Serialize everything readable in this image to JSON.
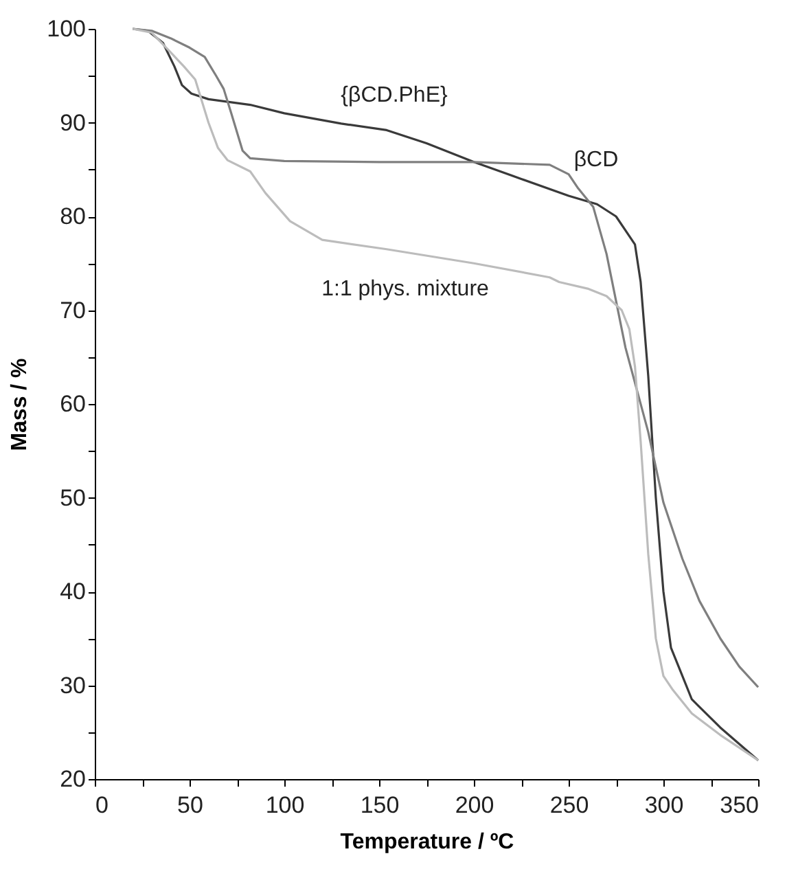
{
  "chart_data": {
    "type": "line",
    "xlabel": "Temperature / ºC",
    "ylabel": "Mass / %",
    "xlim": [
      0,
      350
    ],
    "ylim": [
      20,
      100
    ],
    "xticks": [
      0,
      {
        "value": 25,
        "label": null
      },
      50,
      {
        "value": 75,
        "label": null
      },
      100,
      {
        "value": 125,
        "label": null
      },
      150,
      {
        "value": 175,
        "label": null
      },
      200,
      {
        "value": 225,
        "label": null
      },
      250,
      {
        "value": 275,
        "label": null
      },
      300,
      {
        "value": 325,
        "label": null
      },
      350
    ],
    "yticks": [
      20,
      {
        "value": 25,
        "label": null
      },
      30,
      {
        "value": 35,
        "label": null
      },
      40,
      {
        "value": 45,
        "label": null
      },
      50,
      {
        "value": 55,
        "label": null
      },
      60,
      {
        "value": 65,
        "label": null
      },
      70,
      {
        "value": 75,
        "label": null
      },
      80,
      {
        "value": 85,
        "label": null
      },
      90,
      {
        "value": 95,
        "label": null
      },
      100
    ],
    "grid": false,
    "marker": "none",
    "line_style": "solid",
    "series": [
      {
        "color": "#3a3a3a",
        "x": [
          20,
          28,
          36,
          42,
          46,
          51,
          60,
          82,
          100,
          130,
          154,
          175,
          200,
          225,
          250,
          265,
          275,
          280,
          285,
          288,
          292,
          296,
          300,
          304,
          308,
          315,
          330,
          350
        ],
        "values": [
          100,
          99.8,
          98.5,
          96,
          94,
          93.1,
          92.5,
          91.9,
          91,
          89.9,
          89.2,
          87.8,
          85.8,
          84,
          82.2,
          81.3,
          80,
          78.5,
          77,
          73,
          63,
          50,
          40,
          34,
          32,
          28.5,
          25.5,
          22
        ]
      },
      {
        "color": "#7f7f7f",
        "x": [
          20,
          30,
          40,
          50,
          58,
          64,
          68,
          72,
          78,
          82,
          100,
          150,
          200,
          240,
          250,
          255,
          263,
          270,
          280,
          292,
          300,
          310,
          319,
          330,
          340,
          350
        ],
        "values": [
          100,
          99.8,
          99,
          98,
          97,
          95,
          93.6,
          91,
          87,
          86.2,
          85.9,
          85.8,
          85.8,
          85.5,
          84.5,
          83,
          81,
          76,
          66,
          57,
          49.5,
          43.5,
          39,
          35,
          32,
          29.8
        ]
      },
      {
        "color": "#bcbcbc",
        "x": [
          20,
          30,
          40,
          47,
          53,
          60,
          65,
          70,
          82,
          90,
          103,
          120,
          154,
          200,
          240,
          245,
          260,
          270,
          278,
          282,
          285,
          288,
          292,
          296,
          300,
          305,
          315,
          330,
          350
        ],
        "values": [
          100,
          99.6,
          97.5,
          96,
          94.6,
          90,
          87.3,
          86,
          84.8,
          82.5,
          79.5,
          77.5,
          76.5,
          75,
          73.5,
          73,
          72.3,
          71.5,
          70,
          68,
          64,
          56,
          44,
          35,
          31,
          29.5,
          27,
          24.7,
          22
        ]
      }
    ],
    "annotations": [
      "{βCD.PhE}",
      "βCD",
      "1:1 phys. mixture"
    ]
  }
}
